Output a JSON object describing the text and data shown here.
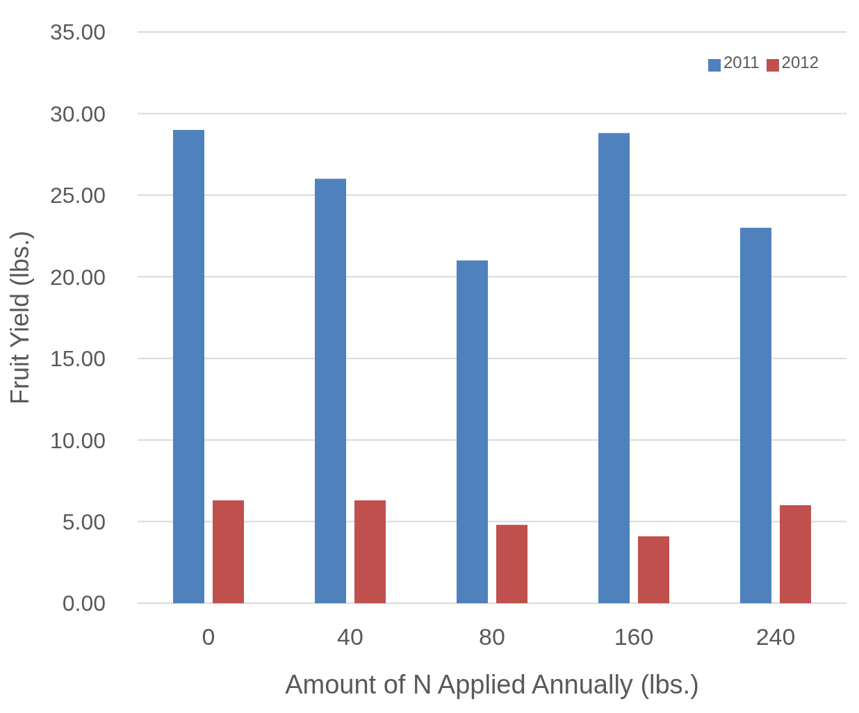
{
  "chart_data": {
    "type": "bar",
    "xlabel": "Amount of N Applied Annually (lbs.)",
    "ylabel": "Fruit Yield (lbs.)",
    "categories": [
      "0",
      "40",
      "80",
      "160",
      "240"
    ],
    "series": [
      {
        "name": "2011",
        "color": "#4f81bd",
        "values": [
          29.0,
          26.0,
          21.0,
          28.8,
          23.0
        ]
      },
      {
        "name": "2012",
        "color": "#c0504d",
        "values": [
          6.3,
          6.3,
          4.8,
          4.1,
          6.0
        ]
      }
    ],
    "ylim": [
      0,
      35
    ],
    "yticks": [
      {
        "value": 0,
        "label": "0.00"
      },
      {
        "value": 5,
        "label": "5.00"
      },
      {
        "value": 10,
        "label": "10.00"
      },
      {
        "value": 15,
        "label": "15.00"
      },
      {
        "value": 20,
        "label": "20.00"
      },
      {
        "value": 25,
        "label": "25.00"
      },
      {
        "value": 30,
        "label": "30.00"
      },
      {
        "value": 35,
        "label": "35.00"
      }
    ],
    "grid": "y",
    "legend": "top right"
  }
}
